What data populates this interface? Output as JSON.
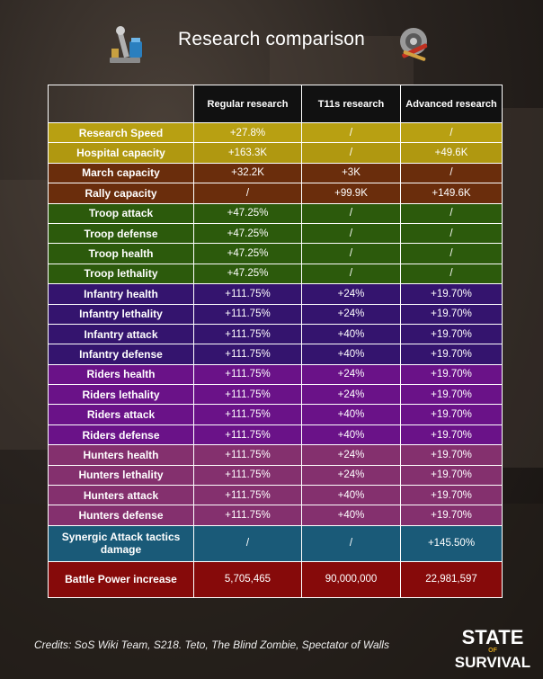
{
  "title": "Research comparison",
  "columns": [
    "Regular research",
    "T11s research",
    "Advanced research"
  ],
  "rows": [
    {
      "label": "Research Speed",
      "values": [
        "+27.8%",
        "/",
        "/"
      ],
      "bg": "#b8a012"
    },
    {
      "label": "Hospital capacity",
      "values": [
        "+163.3K",
        "/",
        "+49.6K"
      ],
      "bg": "#b09810"
    },
    {
      "label": "March capacity",
      "values": [
        "+32.2K",
        "+3K",
        "/"
      ],
      "bg": "#6a2d0c"
    },
    {
      "label": "Rally capacity",
      "values": [
        "/",
        "+99.9K",
        "+149.6K"
      ],
      "bg": "#6a2d0c"
    },
    {
      "label": "Troop attack",
      "values": [
        "+47.25%",
        "/",
        "/"
      ],
      "bg": "#2c5a0c"
    },
    {
      "label": "Troop defense",
      "values": [
        "+47.25%",
        "/",
        "/"
      ],
      "bg": "#2c5a0c"
    },
    {
      "label": "Troop health",
      "values": [
        "+47.25%",
        "/",
        "/"
      ],
      "bg": "#2c5a0c"
    },
    {
      "label": "Troop lethality",
      "values": [
        "+47.25%",
        "/",
        "/"
      ],
      "bg": "#2c5a0c"
    },
    {
      "label": "Infantry health",
      "values": [
        "+111.75%",
        "+24%",
        "+19.70%"
      ],
      "bg": "#34146e"
    },
    {
      "label": "Infantry lethality",
      "values": [
        "+111.75%",
        "+24%",
        "+19.70%"
      ],
      "bg": "#34146e"
    },
    {
      "label": "Infantry attack",
      "values": [
        "+111.75%",
        "+40%",
        "+19.70%"
      ],
      "bg": "#34146e"
    },
    {
      "label": "Infantry defense",
      "values": [
        "+111.75%",
        "+40%",
        "+19.70%"
      ],
      "bg": "#34146e"
    },
    {
      "label": "Riders health",
      "values": [
        "+111.75%",
        "+24%",
        "+19.70%"
      ],
      "bg": "#6a1288"
    },
    {
      "label": "Riders lethality",
      "values": [
        "+111.75%",
        "+24%",
        "+19.70%"
      ],
      "bg": "#6a1288"
    },
    {
      "label": "Riders attack",
      "values": [
        "+111.75%",
        "+40%",
        "+19.70%"
      ],
      "bg": "#6a1288"
    },
    {
      "label": "Riders defense",
      "values": [
        "+111.75%",
        "+40%",
        "+19.70%"
      ],
      "bg": "#6a1288"
    },
    {
      "label": "Hunters health",
      "values": [
        "+111.75%",
        "+24%",
        "+19.70%"
      ],
      "bg": "#84306e"
    },
    {
      "label": "Hunters lethality",
      "values": [
        "+111.75%",
        "+24%",
        "+19.70%"
      ],
      "bg": "#84306e"
    },
    {
      "label": "Hunters attack",
      "values": [
        "+111.75%",
        "+40%",
        "+19.70%"
      ],
      "bg": "#84306e"
    },
    {
      "label": "Hunters defense",
      "values": [
        "+111.75%",
        "+40%",
        "+19.70%"
      ],
      "bg": "#84306e"
    },
    {
      "label": "Synergic Attack tactics damage",
      "values": [
        "/",
        "/",
        "+145.50%"
      ],
      "bg": "#1a5a78",
      "tall": true
    },
    {
      "label": "Battle Power increase",
      "values": [
        "5,705,465",
        "90,000,000",
        "22,981,597"
      ],
      "bg": "#860a0a",
      "tall": true
    }
  ],
  "credits": "Credits: SoS Wiki Team, S218. Teto, The Blind Zombie, Spectator of Walls",
  "logo": {
    "line1": "STATE",
    "line2": "SURVIVAL",
    "small": "OF"
  },
  "icons": {
    "left": "microscope-research-icon",
    "right": "gear-tools-icon"
  }
}
